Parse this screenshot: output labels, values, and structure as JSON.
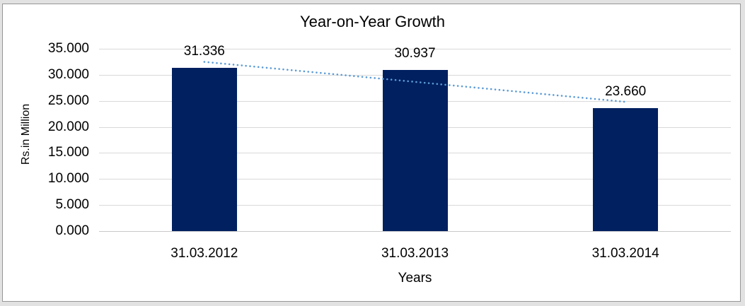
{
  "frame": {
    "background_color": "#e2e2e2",
    "chart_background_color": "#ffffff",
    "border_color": "#969696"
  },
  "chart_data": {
    "type": "bar",
    "title": "Year-on-Year Growth",
    "xlabel": "Years",
    "ylabel": "Rs.in Million",
    "categories": [
      "31.03.2012",
      "31.03.2013",
      "31.03.2014"
    ],
    "values": [
      31.336,
      30.937,
      23.66
    ],
    "value_labels": [
      "31.336",
      "30.937",
      "23.660"
    ],
    "ylim": [
      0,
      35
    ],
    "ytick_step": 5,
    "ytick_labels": [
      "0.000",
      "5.000",
      "10.000",
      "15.000",
      "20.000",
      "25.000",
      "30.000",
      "35.000"
    ],
    "grid": true,
    "legend": "none",
    "bar_color": "#002060",
    "gridline_color": "#d9d9d9",
    "axis_line_color": "#c8c8c8",
    "trendline": {
      "type": "linear",
      "style": "dotted",
      "color": "#5b9bd5"
    }
  }
}
